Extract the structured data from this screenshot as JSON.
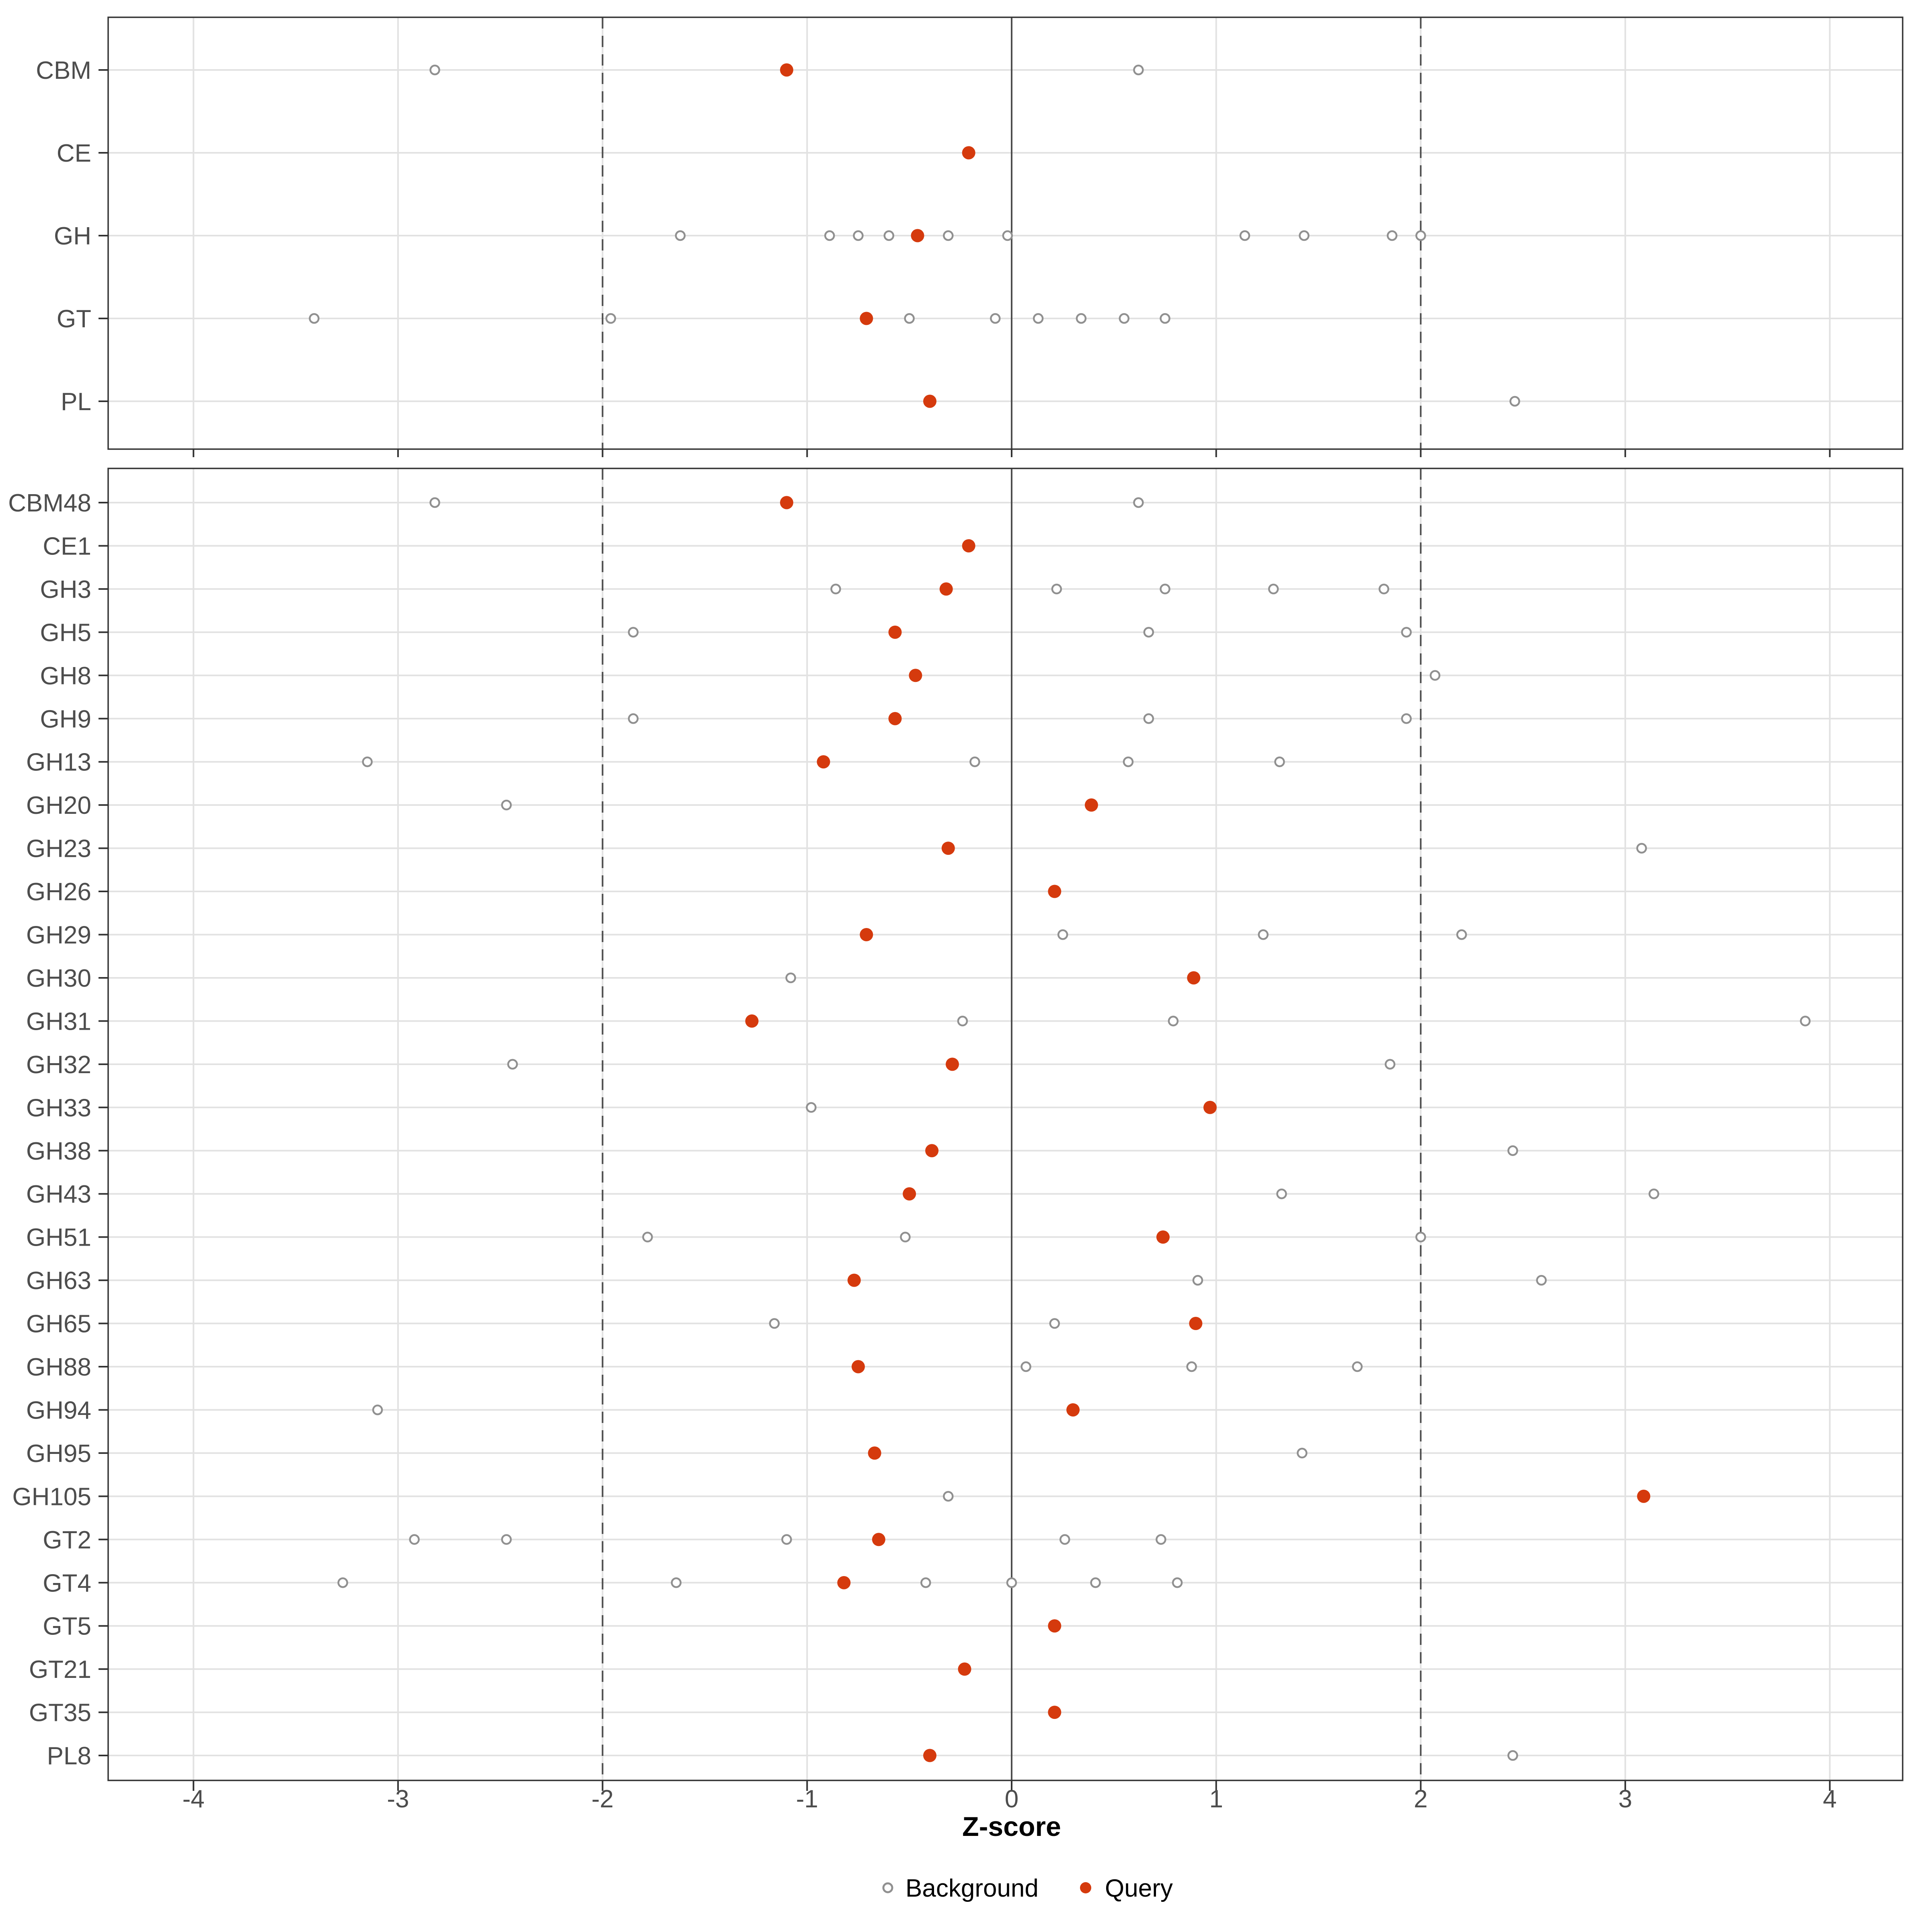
{
  "chart_data": {
    "type": "scatter",
    "title": "",
    "xlabel": "Z-score",
    "x_ticks": [
      -4,
      -3,
      -2,
      -1,
      0,
      1,
      2,
      3,
      4
    ],
    "xlim": [
      -4.42,
      4.36
    ],
    "grid": "major-only",
    "legend_position": "bottom-center",
    "reference_lines": {
      "zero": 0,
      "dashed": [
        -2,
        2
      ]
    },
    "series_legend": [
      {
        "name": "Background",
        "marker": "open-circle"
      },
      {
        "name": "Query",
        "marker": "filled-circle"
      }
    ],
    "colors": {
      "query": "#D53A0D",
      "background_stroke": "#909090",
      "gridline": "#E2E2E2",
      "reference_line": "#4D4D4D",
      "axis_text": "#4D4D4D",
      "panel_border": "#343434",
      "tick_mark": "#333333"
    },
    "panels": [
      {
        "name": "families-summary",
        "rows": [
          {
            "label": "CBM",
            "background": [
              -2.82,
              0.62
            ],
            "query": [
              -1.1
            ]
          },
          {
            "label": "CE",
            "background": [],
            "query": [
              -0.21
            ]
          },
          {
            "label": "GH",
            "background": [
              -1.62,
              -0.89,
              -0.75,
              -0.6,
              -0.31,
              -0.02,
              1.14,
              1.43,
              1.86,
              2.0
            ],
            "query": [
              -0.46
            ]
          },
          {
            "label": "GT",
            "background": [
              -3.41,
              -1.96,
              -0.5,
              -0.08,
              0.13,
              0.34,
              0.55,
              0.75
            ],
            "query": [
              -0.71
            ]
          },
          {
            "label": "PL",
            "background": [
              2.46
            ],
            "query": [
              -0.4
            ]
          }
        ]
      },
      {
        "name": "families-detail",
        "rows": [
          {
            "label": "CBM48",
            "background": [
              -2.82,
              0.62
            ],
            "query": [
              -1.1
            ]
          },
          {
            "label": "CE1",
            "background": [],
            "query": [
              -0.21
            ]
          },
          {
            "label": "GH3",
            "background": [
              -0.86,
              0.22,
              0.75,
              1.28,
              1.82
            ],
            "query": [
              -0.32
            ]
          },
          {
            "label": "GH5",
            "background": [
              -1.85,
              0.67,
              1.93
            ],
            "query": [
              -0.57
            ]
          },
          {
            "label": "GH8",
            "background": [
              2.07
            ],
            "query": [
              -0.47
            ]
          },
          {
            "label": "GH9",
            "background": [
              -1.85,
              0.67,
              1.93
            ],
            "query": [
              -0.57
            ]
          },
          {
            "label": "GH13",
            "background": [
              -3.15,
              -0.18,
              0.57,
              1.31
            ],
            "query": [
              -0.92
            ]
          },
          {
            "label": "GH20",
            "background": [
              -2.47
            ],
            "query": [
              0.39
            ]
          },
          {
            "label": "GH23",
            "background": [
              3.08
            ],
            "query": [
              -0.31
            ]
          },
          {
            "label": "GH26",
            "background": [],
            "query": [
              0.21
            ]
          },
          {
            "label": "GH29",
            "background": [
              0.25,
              1.23,
              2.2
            ],
            "query": [
              -0.71
            ]
          },
          {
            "label": "GH30",
            "background": [
              -1.08
            ],
            "query": [
              0.89
            ]
          },
          {
            "label": "GH31",
            "background": [
              -0.24,
              0.79,
              3.88
            ],
            "query": [
              -1.27
            ]
          },
          {
            "label": "GH32",
            "background": [
              -2.44,
              1.85
            ],
            "query": [
              -0.29
            ]
          },
          {
            "label": "GH33",
            "background": [
              -0.98
            ],
            "query": [
              0.97
            ]
          },
          {
            "label": "GH38",
            "background": [
              2.45
            ],
            "query": [
              -0.39
            ]
          },
          {
            "label": "GH43",
            "background": [
              1.32,
              3.14
            ],
            "query": [
              -0.5
            ]
          },
          {
            "label": "GH51",
            "background": [
              -1.78,
              -0.52,
              2.0
            ],
            "query": [
              0.74
            ]
          },
          {
            "label": "GH63",
            "background": [
              0.91,
              2.59
            ],
            "query": [
              -0.77
            ]
          },
          {
            "label": "GH65",
            "background": [
              -1.16,
              0.21
            ],
            "query": [
              0.9
            ]
          },
          {
            "label": "GH88",
            "background": [
              0.07,
              0.88,
              1.69
            ],
            "query": [
              -0.75
            ]
          },
          {
            "label": "GH94",
            "background": [
              -3.1
            ],
            "query": [
              0.3
            ]
          },
          {
            "label": "GH95",
            "background": [
              1.42
            ],
            "query": [
              -0.67
            ]
          },
          {
            "label": "GH105",
            "background": [
              -0.31
            ],
            "query": [
              3.09
            ]
          },
          {
            "label": "GT2",
            "background": [
              -2.92,
              -2.47,
              -1.1,
              0.26,
              0.73
            ],
            "query": [
              -0.65
            ]
          },
          {
            "label": "GT4",
            "background": [
              -3.27,
              -1.64,
              -0.42,
              0.0,
              0.41,
              0.81
            ],
            "query": [
              -0.82
            ]
          },
          {
            "label": "GT5",
            "background": [],
            "query": [
              0.21
            ]
          },
          {
            "label": "GT21",
            "background": [],
            "query": [
              -0.23
            ]
          },
          {
            "label": "GT35",
            "background": [],
            "query": [
              0.21
            ]
          },
          {
            "label": "PL8",
            "background": [
              2.45
            ],
            "query": [
              -0.4
            ]
          }
        ]
      }
    ]
  }
}
